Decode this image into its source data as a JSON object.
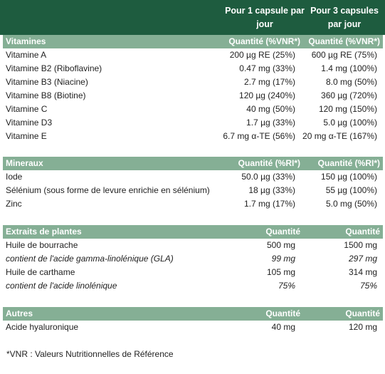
{
  "header": {
    "col1": "Pour 1 capsule par jour",
    "col2": "Pour 3 capsules par jour"
  },
  "sections": [
    {
      "title": "Vitamines",
      "q1": "Quantité (%VNR*)",
      "q2": "Quantité (%VNR*)",
      "rows": [
        {
          "label": "Vitamine A",
          "v1": "200 µg RE (25%)",
          "v2": "600 µg RE (75%)"
        },
        {
          "label": "Vitamine B2 (Riboflavine)",
          "v1": "0.47 mg (33%)",
          "v2": "1.4 mg (100%)"
        },
        {
          "label": "Vitamine B3 (Niacine)",
          "v1": "2.7 mg (17%)",
          "v2": "8.0 mg (50%)"
        },
        {
          "label": "Vitamine B8 (Biotine)",
          "v1": "120 µg (240%)",
          "v2": "360 µg (720%)"
        },
        {
          "label": "Vitamine C",
          "v1": "40 mg  (50%)",
          "v2": "120 mg  (150%)"
        },
        {
          "label": "Vitamine D3",
          "v1": "1.7 µg (33%)",
          "v2": "5.0 µg (100%)"
        },
        {
          "label": "Vitamine E",
          "v1": "6.7 mg α-TE (56%)",
          "v2": "20 mg α-TE (167%)"
        }
      ]
    },
    {
      "title": "Mineraux",
      "q1": "Quantité (%RI*)",
      "q2": "Quantité (%RI*)",
      "rows": [
        {
          "label": "Iode",
          "v1": "50.0 µg (33%)",
          "v2": "150 µg (100%)"
        },
        {
          "label": "Sélénium (sous forme de levure enrichie en sélénium)",
          "v1": "18 µg (33%)",
          "v2": "55 µg (100%)"
        },
        {
          "label": "Zinc",
          "v1": "1.7 mg (17%)",
          "v2": "5.0 mg (50%)"
        }
      ]
    },
    {
      "title": "Extraits de plantes",
      "q1": "Quantité",
      "q2": "Quantité",
      "rows": [
        {
          "label": "Huile de bourrache",
          "v1": "500 mg",
          "v2": "1500 mg"
        },
        {
          "label": "contient de l'acide gamma-linolénique (GLA)",
          "v1": "99 mg",
          "v2": "297 mg",
          "italic": true
        },
        {
          "label": "Huile de carthame",
          "v1": "105 mg",
          "v2": "314 mg"
        },
        {
          "label": "contient de l'acide linolénique",
          "v1": "75%",
          "v2": "75%",
          "italic": true
        }
      ]
    },
    {
      "title": "Autres",
      "q1": "Quantité",
      "q2": "Quantité",
      "rows": [
        {
          "label": "Acide hyaluronique",
          "v1": "40 mg",
          "v2": "120 mg"
        }
      ]
    }
  ],
  "footnote": "*VNR : Valeurs Nutritionnelles de Référence",
  "colors": {
    "header_dark_green": "#1e5c3f",
    "section_header_green": "#85af95"
  }
}
